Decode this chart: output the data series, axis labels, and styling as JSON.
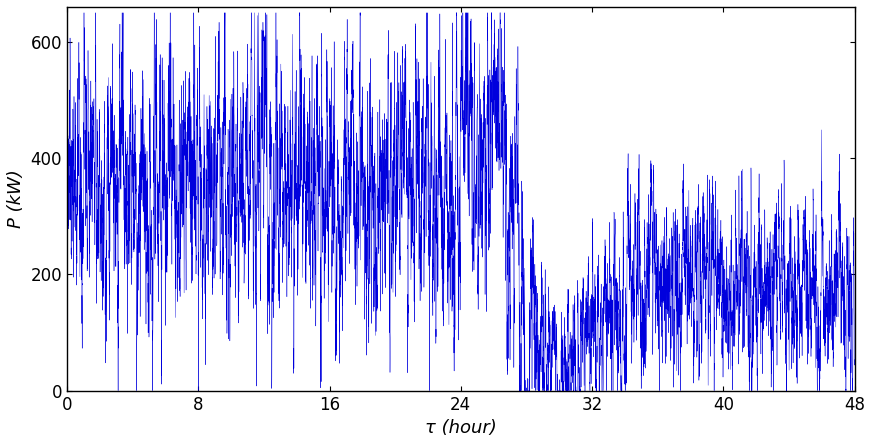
{
  "n_points": 10000,
  "t_start": 0,
  "t_end": 48,
  "seed": 1234,
  "line_color": "#0000DD",
  "line_width": 0.3,
  "xlabel": "τ (hour)",
  "ylabel": "P (kW)",
  "xlim": [
    0,
    48
  ],
  "ylim": [
    0,
    660
  ],
  "xticks": [
    0,
    8,
    16,
    24,
    32,
    40,
    48
  ],
  "yticks": [
    0,
    200,
    400,
    600
  ],
  "xlabel_fontsize": 13,
  "ylabel_fontsize": 13,
  "tick_fontsize": 12,
  "figwidth": 8.72,
  "figheight": 4.44,
  "dpi": 100
}
